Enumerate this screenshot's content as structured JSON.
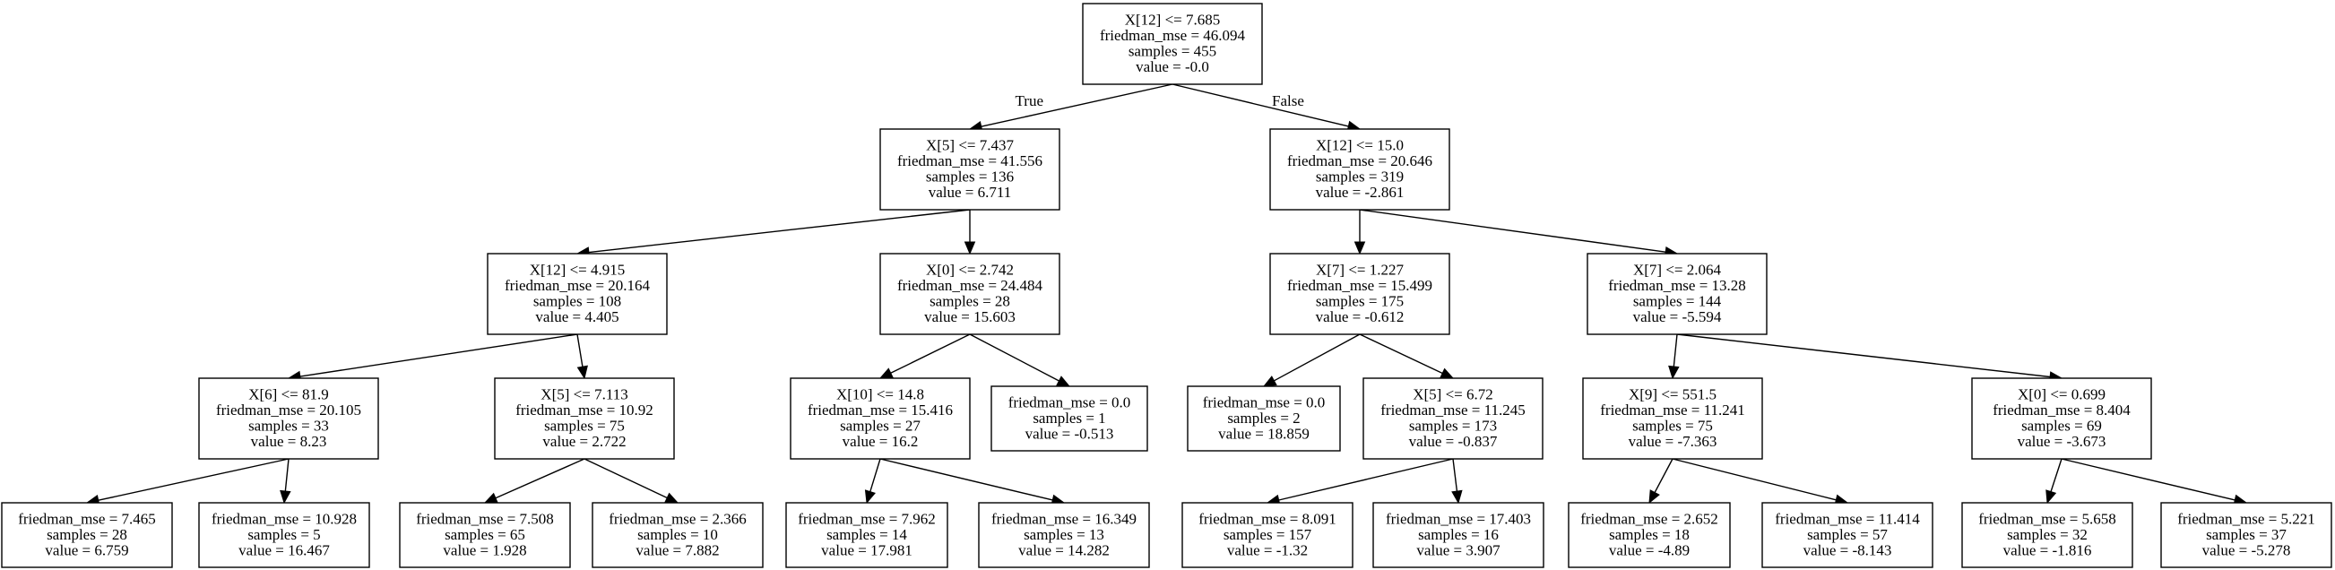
{
  "tree": {
    "edge_labels": {
      "true_label": "True",
      "false_label": "False"
    },
    "nodes": [
      {
        "id": "n0",
        "lines": [
          "X[12] <= 7.685",
          "friedman_mse = 46.094",
          "samples = 455",
          "value = -0.0"
        ]
      },
      {
        "id": "n1",
        "lines": [
          "X[5] <= 7.437",
          "friedman_mse = 41.556",
          "samples = 136",
          "value = 6.711"
        ]
      },
      {
        "id": "n2",
        "lines": [
          "X[12] <= 4.915",
          "friedman_mse = 20.164",
          "samples = 108",
          "value = 4.405"
        ]
      },
      {
        "id": "n3",
        "lines": [
          "X[6] <= 81.9",
          "friedman_mse = 20.105",
          "samples = 33",
          "value = 8.23"
        ]
      },
      {
        "id": "n4",
        "lines": [
          "friedman_mse = 7.465",
          "samples = 28",
          "value = 6.759"
        ]
      },
      {
        "id": "n5",
        "lines": [
          "friedman_mse = 10.928",
          "samples = 5",
          "value = 16.467"
        ]
      },
      {
        "id": "n6",
        "lines": [
          "X[5] <= 7.113",
          "friedman_mse = 10.92",
          "samples = 75",
          "value = 2.722"
        ]
      },
      {
        "id": "n7",
        "lines": [
          "friedman_mse = 7.508",
          "samples = 65",
          "value = 1.928"
        ]
      },
      {
        "id": "n8",
        "lines": [
          "friedman_mse = 2.366",
          "samples = 10",
          "value = 7.882"
        ]
      },
      {
        "id": "n9",
        "lines": [
          "X[0] <= 2.742",
          "friedman_mse = 24.484",
          "samples = 28",
          "value = 15.603"
        ]
      },
      {
        "id": "n10",
        "lines": [
          "X[10] <= 14.8",
          "friedman_mse = 15.416",
          "samples = 27",
          "value = 16.2"
        ]
      },
      {
        "id": "n11",
        "lines": [
          "friedman_mse = 7.962",
          "samples = 14",
          "value = 17.981"
        ]
      },
      {
        "id": "n12",
        "lines": [
          "friedman_mse = 16.349",
          "samples = 13",
          "value = 14.282"
        ]
      },
      {
        "id": "n13",
        "lines": [
          "friedman_mse = 0.0",
          "samples = 1",
          "value = -0.513"
        ]
      },
      {
        "id": "n14",
        "lines": [
          "X[12] <= 15.0",
          "friedman_mse = 20.646",
          "samples = 319",
          "value = -2.861"
        ]
      },
      {
        "id": "n15",
        "lines": [
          "X[7] <= 1.227",
          "friedman_mse = 15.499",
          "samples = 175",
          "value = -0.612"
        ]
      },
      {
        "id": "n16",
        "lines": [
          "friedman_mse = 0.0",
          "samples = 2",
          "value = 18.859"
        ]
      },
      {
        "id": "n17",
        "lines": [
          "X[5] <= 6.72",
          "friedman_mse = 11.245",
          "samples = 173",
          "value = -0.837"
        ]
      },
      {
        "id": "n18",
        "lines": [
          "friedman_mse = 8.091",
          "samples = 157",
          "value = -1.32"
        ]
      },
      {
        "id": "n19",
        "lines": [
          "friedman_mse = 17.403",
          "samples = 16",
          "value = 3.907"
        ]
      },
      {
        "id": "n20",
        "lines": [
          "X[7] <= 2.064",
          "friedman_mse = 13.28",
          "samples = 144",
          "value = -5.594"
        ]
      },
      {
        "id": "n21",
        "lines": [
          "X[9] <= 551.5",
          "friedman_mse = 11.241",
          "samples = 75",
          "value = -7.363"
        ]
      },
      {
        "id": "n22",
        "lines": [
          "friedman_mse = 2.652",
          "samples = 18",
          "value = -4.89"
        ]
      },
      {
        "id": "n23",
        "lines": [
          "friedman_mse = 11.414",
          "samples = 57",
          "value = -8.143"
        ]
      },
      {
        "id": "n24",
        "lines": [
          "X[0] <= 0.699",
          "friedman_mse = 8.404",
          "samples = 69",
          "value = -3.673"
        ]
      },
      {
        "id": "n25",
        "lines": [
          "friedman_mse = 5.658",
          "samples = 32",
          "value = -1.816"
        ]
      },
      {
        "id": "n26",
        "lines": [
          "friedman_mse = 5.221",
          "samples = 37",
          "value = -5.278"
        ]
      }
    ],
    "edges": [
      {
        "from": "n0",
        "to": "n1",
        "label": "true_label"
      },
      {
        "from": "n0",
        "to": "n14",
        "label": "false_label"
      },
      {
        "from": "n1",
        "to": "n2"
      },
      {
        "from": "n1",
        "to": "n9"
      },
      {
        "from": "n2",
        "to": "n3"
      },
      {
        "from": "n2",
        "to": "n6"
      },
      {
        "from": "n3",
        "to": "n4"
      },
      {
        "from": "n3",
        "to": "n5"
      },
      {
        "from": "n6",
        "to": "n7"
      },
      {
        "from": "n6",
        "to": "n8"
      },
      {
        "from": "n9",
        "to": "n10"
      },
      {
        "from": "n9",
        "to": "n13"
      },
      {
        "from": "n10",
        "to": "n11"
      },
      {
        "from": "n10",
        "to": "n12"
      },
      {
        "from": "n14",
        "to": "n15"
      },
      {
        "from": "n14",
        "to": "n20"
      },
      {
        "from": "n15",
        "to": "n16"
      },
      {
        "from": "n15",
        "to": "n17"
      },
      {
        "from": "n17",
        "to": "n18"
      },
      {
        "from": "n17",
        "to": "n19"
      },
      {
        "from": "n20",
        "to": "n21"
      },
      {
        "from": "n20",
        "to": "n24"
      },
      {
        "from": "n21",
        "to": "n22"
      },
      {
        "from": "n21",
        "to": "n23"
      },
      {
        "from": "n24",
        "to": "n25"
      },
      {
        "from": "n24",
        "to": "n26"
      }
    ]
  }
}
